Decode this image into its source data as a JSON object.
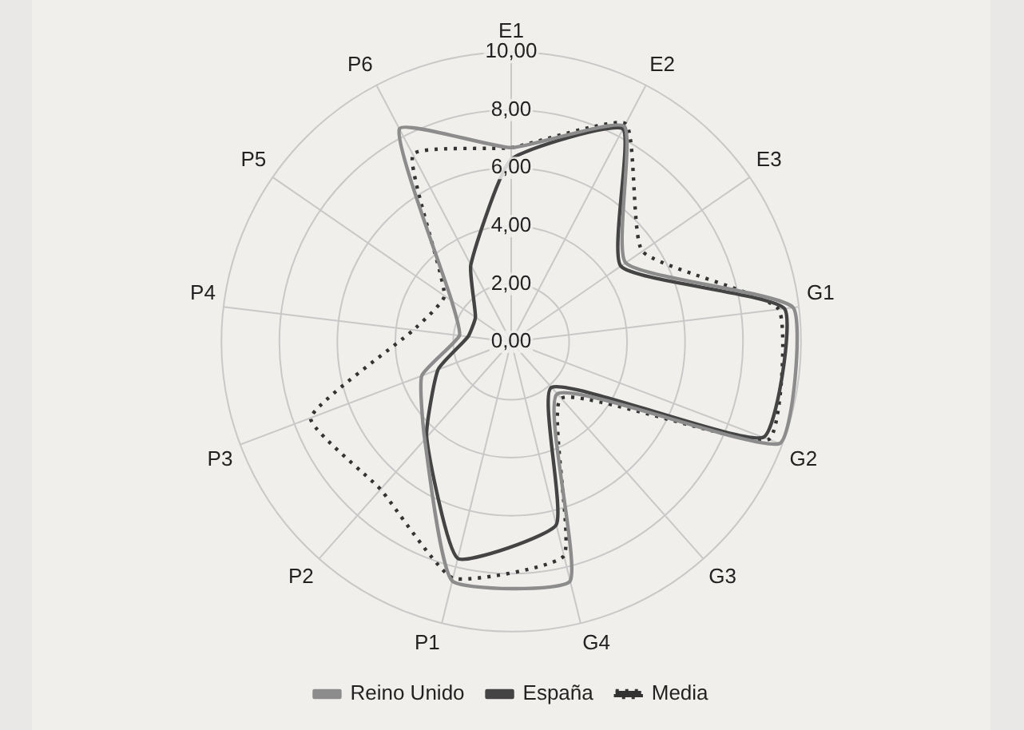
{
  "chart_data": {
    "type": "radar",
    "categories": [
      "E1",
      "E2",
      "E3",
      "G1",
      "G2",
      "G3",
      "G4",
      "P1",
      "P2",
      "P3",
      "P4",
      "P5",
      "P6"
    ],
    "series": [
      {
        "name": "Reino Unido",
        "color": "#8c8c8c",
        "line_style": "solid",
        "values": [
          6.7,
          8.4,
          4.8,
          9.8,
          9.9,
          2.4,
          8.5,
          8.5,
          4.5,
          3.3,
          1.8,
          2.5,
          8.3
        ]
      },
      {
        "name": "España",
        "color": "#444444",
        "line_style": "solid",
        "values": [
          6.3,
          8.3,
          4.6,
          9.5,
          9.3,
          2.1,
          6.5,
          7.7,
          4.4,
          2.7,
          1.5,
          1.5,
          3.0
        ]
      },
      {
        "name": "Media",
        "color": "#333333",
        "line_style": "dotted",
        "values": [
          6.7,
          8.5,
          5.5,
          9.3,
          9.5,
          2.6,
          7.6,
          8.4,
          6.8,
          7.4,
          3.4,
          2.8,
          7.3
        ]
      }
    ],
    "ylim": [
      0,
      10
    ],
    "yticks": [
      {
        "value": 0,
        "label": "0,00"
      },
      {
        "value": 2,
        "label": "2,00"
      },
      {
        "value": 4,
        "label": "4,00"
      },
      {
        "value": 6,
        "label": "6,00"
      },
      {
        "value": 8,
        "label": "8,00"
      },
      {
        "value": 10,
        "label": "10,00"
      }
    ],
    "grid": true,
    "legend": "bottom",
    "marker": "none"
  }
}
